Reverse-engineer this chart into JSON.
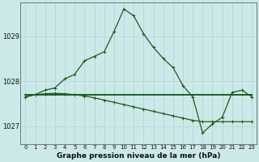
{
  "bg_color": "#cce9e9",
  "grid_color": "#b8d8d8",
  "line_color": "#1a5c1a",
  "x_labels": [
    "0",
    "1",
    "2",
    "3",
    "4",
    "5",
    "6",
    "7",
    "8",
    "9",
    "10",
    "11",
    "12",
    "13",
    "14",
    "15",
    "16",
    "17",
    "18",
    "19",
    "20",
    "21",
    "22",
    "23"
  ],
  "ylim": [
    1026.6,
    1029.75
  ],
  "yticks": [
    1027,
    1028,
    1029
  ],
  "line_main": [
    1027.65,
    1027.7,
    1027.8,
    1027.85,
    1028.05,
    1028.15,
    1028.45,
    1028.55,
    1028.65,
    1029.1,
    1029.6,
    1029.45,
    1029.05,
    1028.75,
    1028.5,
    1028.3,
    1027.9,
    1027.65,
    1026.85,
    1027.05,
    1027.2,
    1027.75,
    1027.8,
    1027.65
  ],
  "line_flat": [
    1027.7,
    1027.7,
    1027.7,
    1027.7,
    1027.7,
    1027.7,
    1027.7,
    1027.7,
    1027.7,
    1027.7,
    1027.7,
    1027.7,
    1027.7,
    1027.7,
    1027.7,
    1027.7,
    1027.7,
    1027.7,
    1027.7,
    1027.7,
    1027.7,
    1027.7,
    1027.7,
    1027.7
  ],
  "line_diag": [
    1027.65,
    1027.7,
    1027.72,
    1027.73,
    1027.72,
    1027.7,
    1027.67,
    1027.63,
    1027.58,
    1027.53,
    1027.48,
    1027.43,
    1027.38,
    1027.33,
    1027.28,
    1027.23,
    1027.18,
    1027.13,
    1027.1,
    1027.1,
    1027.1,
    1027.1,
    1027.1,
    1027.1
  ],
  "xlabel": "Graphe pression niveau de la mer (hPa)",
  "marker": "+",
  "markersize": 3,
  "linewidth": 0.9,
  "xtick_fontsize": 5.0,
  "ytick_fontsize": 6.0,
  "xlabel_fontsize": 6.5
}
